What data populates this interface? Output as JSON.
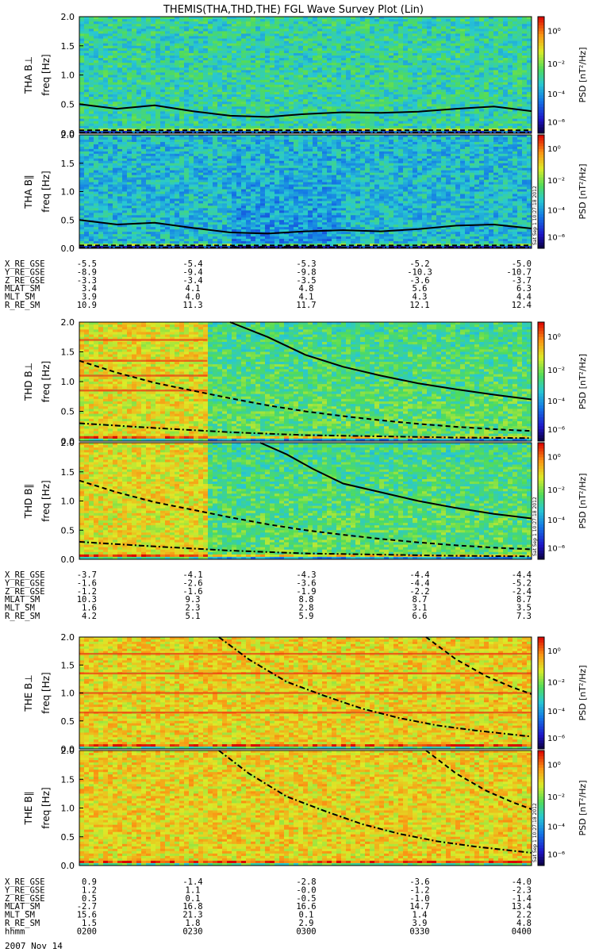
{
  "title": "THEMIS(THA,THD,THE) FGL Wave Survey Plot (Lin)",
  "freq_axis_label": "freq [Hz]",
  "freq_ticks": [
    "0.0",
    "0.5",
    "1.0",
    "1.5",
    "2.0"
  ],
  "psd_axis_label": "PSD [nT²/Hz]",
  "psd_ticks": [
    "10⁰",
    "10⁻²",
    "10⁻⁴",
    "10⁻⁶"
  ],
  "timestamp_note": "Sat Sep 1 10:27:18 2012",
  "date_label": "2007 Nov 14",
  "chart_data": [
    {
      "type": "heatmap",
      "probe": "THA",
      "panels": [
        {
          "component": "THA B⊥",
          "ylim": [
            0,
            2.0
          ],
          "spectrum": "moderate",
          "gap_lines": [],
          "curves": [
            {
              "style": "solid",
              "t": [
                0,
                10,
                20,
                30,
                40,
                50,
                60,
                70,
                80,
                90,
                100,
                110,
                120
              ],
              "f": [
                0.5,
                0.42,
                0.48,
                0.38,
                0.3,
                0.28,
                0.33,
                0.36,
                0.35,
                0.37,
                0.42,
                0.46,
                0.38
              ]
            },
            {
              "style": "dashed",
              "t": [
                0,
                120
              ],
              "f": [
                0.05,
                0.05
              ]
            },
            {
              "style": "dashdot",
              "t": [
                0,
                120
              ],
              "f": [
                0.01,
                0.01
              ]
            }
          ]
        },
        {
          "component": "THA B∥",
          "ylim": [
            0,
            2.0
          ],
          "spectrum": "quiet",
          "gap_lines": [],
          "curves": [
            {
              "style": "solid",
              "t": [
                0,
                10,
                20,
                30,
                40,
                50,
                60,
                70,
                80,
                90,
                100,
                110,
                120
              ],
              "f": [
                0.5,
                0.42,
                0.45,
                0.36,
                0.28,
                0.26,
                0.3,
                0.32,
                0.3,
                0.34,
                0.4,
                0.42,
                0.35
              ]
            },
            {
              "style": "dashed",
              "t": [
                0,
                120
              ],
              "f": [
                0.05,
                0.05
              ]
            },
            {
              "style": "dashdot",
              "t": [
                0,
                120
              ],
              "f": [
                0.01,
                0.01
              ]
            }
          ]
        }
      ],
      "ephemeris": {
        "labels": [
          "X_RE_GSE",
          "Y_RE_GSE",
          "Z_RE_GSE",
          "MLAT_SM",
          "MLT_SM",
          "R_RE_SM"
        ],
        "columns": [
          [
            "-5.5",
            "-8.9",
            "-3.3",
            "3.4",
            "3.9",
            "10.9"
          ],
          [
            "-5.4",
            "-9.4",
            "-3.4",
            "4.1",
            "4.0",
            "11.3"
          ],
          [
            "-5.3",
            "-9.8",
            "-3.5",
            "4.8",
            "4.1",
            "11.7"
          ],
          [
            "-5.2",
            "-10.3",
            "-3.6",
            "5.6",
            "4.3",
            "12.1"
          ],
          [
            "-5.0",
            "-10.7",
            "-3.7",
            "6.3",
            "4.4",
            "12.4"
          ]
        ]
      }
    },
    {
      "type": "heatmap",
      "probe": "THD",
      "panels": [
        {
          "component": "THD B⊥",
          "ylim": [
            0,
            2.0
          ],
          "spectrum": "hot_then_green",
          "hot_until_t": 34,
          "gap_lines": [
            1.7,
            1.35,
            1.1,
            0.85
          ],
          "curves": [
            {
              "style": "solid",
              "t": [
                40,
                50,
                60,
                70,
                80,
                90,
                100,
                110,
                120
              ],
              "f": [
                2.0,
                1.75,
                1.45,
                1.25,
                1.1,
                0.97,
                0.87,
                0.78,
                0.7
              ]
            },
            {
              "style": "dashed",
              "t": [
                0,
                10,
                20,
                30,
                40,
                50,
                60,
                70,
                80,
                90,
                100,
                110,
                120
              ],
              "f": [
                1.35,
                1.15,
                0.98,
                0.85,
                0.72,
                0.6,
                0.5,
                0.42,
                0.35,
                0.29,
                0.24,
                0.2,
                0.17
              ]
            },
            {
              "style": "dashdot",
              "t": [
                0,
                20,
                40,
                60,
                80,
                100,
                120
              ],
              "f": [
                0.3,
                0.22,
                0.15,
                0.1,
                0.08,
                0.06,
                0.05
              ]
            }
          ]
        },
        {
          "component": "THD B∥",
          "ylim": [
            0,
            2.0
          ],
          "spectrum": "hot_then_green",
          "hot_until_t": 34,
          "gap_lines": [],
          "curves": [
            {
              "style": "solid",
              "t": [
                48,
                55,
                62,
                70,
                80,
                90,
                100,
                110,
                120
              ],
              "f": [
                2.0,
                1.8,
                1.55,
                1.3,
                1.15,
                1.0,
                0.88,
                0.78,
                0.7
              ]
            },
            {
              "style": "dashed",
              "t": [
                0,
                10,
                20,
                30,
                40,
                50,
                60,
                70,
                80,
                90,
                100,
                110,
                120
              ],
              "f": [
                1.35,
                1.15,
                0.98,
                0.85,
                0.72,
                0.6,
                0.5,
                0.42,
                0.35,
                0.29,
                0.24,
                0.2,
                0.17
              ]
            },
            {
              "style": "dashdot",
              "t": [
                0,
                20,
                40,
                60,
                80,
                100,
                120
              ],
              "f": [
                0.3,
                0.22,
                0.15,
                0.1,
                0.08,
                0.06,
                0.05
              ]
            }
          ]
        }
      ],
      "ephemeris": {
        "labels": [
          "X_RE_GSE",
          "Y_RE_GSE",
          "Z_RE_GSE",
          "MLAT_SM",
          "MLT_SM",
          "R_RE_SM"
        ],
        "columns": [
          [
            "-3.7",
            "-1.6",
            "-1.2",
            "10.3",
            "1.6",
            "4.2"
          ],
          [
            "-4.1",
            "-2.6",
            "-1.6",
            "9.3",
            "2.3",
            "5.1"
          ],
          [
            "-4.3",
            "-3.6",
            "-1.9",
            "8.8",
            "2.8",
            "5.9"
          ],
          [
            "-4.4",
            "-4.4",
            "-2.2",
            "8.7",
            "3.1",
            "6.6"
          ],
          [
            "-4.4",
            "-5.2",
            "-2.4",
            "8.7",
            "3.5",
            "7.3"
          ]
        ]
      }
    },
    {
      "type": "heatmap",
      "probe": "THE",
      "panels": [
        {
          "component": "THE B⊥",
          "ylim": [
            0,
            2.0
          ],
          "spectrum": "hot",
          "gap_lines": [
            1.7,
            1.35,
            1.0,
            0.65
          ],
          "curves": [
            {
              "style": "dashdot",
              "t": [
                37,
                45,
                55,
                65,
                75,
                85,
                95,
                105,
                120
              ],
              "f": [
                2.0,
                1.6,
                1.2,
                0.95,
                0.72,
                0.55,
                0.42,
                0.33,
                0.22
              ]
            },
            {
              "style": "dashed",
              "t": [
                92,
                100,
                108,
                115,
                120
              ],
              "f": [
                2.0,
                1.6,
                1.3,
                1.1,
                0.98
              ]
            }
          ]
        },
        {
          "component": "THE B∥",
          "ylim": [
            0,
            2.0
          ],
          "spectrum": "hot",
          "gap_lines": [],
          "curves": [
            {
              "style": "dashdot",
              "t": [
                37,
                45,
                55,
                65,
                75,
                85,
                95,
                105,
                120
              ],
              "f": [
                2.0,
                1.6,
                1.2,
                0.95,
                0.72,
                0.55,
                0.42,
                0.33,
                0.22
              ]
            },
            {
              "style": "dashed",
              "t": [
                92,
                100,
                108,
                115,
                120
              ],
              "f": [
                2.0,
                1.6,
                1.3,
                1.1,
                0.98
              ]
            }
          ]
        }
      ],
      "ephemeris": {
        "labels": [
          "X_RE_GSE",
          "Y_RE_GSE",
          "Z_RE_GSE",
          "MLAT_SM",
          "MLT_SM",
          "R_RE_SM",
          "hhmm"
        ],
        "columns": [
          [
            "0.9",
            "1.2",
            "0.5",
            "-2.7",
            "15.6",
            "1.5",
            "0200"
          ],
          [
            "-1.4",
            "1.1",
            "0.1",
            "16.8",
            "21.3",
            "1.8",
            "0230"
          ],
          [
            "-2.8",
            "-0.0",
            "-0.5",
            "16.6",
            "0.1",
            "2.9",
            "0300"
          ],
          [
            "-3.6",
            "-1.2",
            "-1.0",
            "14.7",
            "1.4",
            "3.9",
            "0330"
          ],
          [
            "-4.0",
            "-2.3",
            "-1.4",
            "13.4",
            "2.2",
            "4.8",
            "0400"
          ]
        ]
      }
    }
  ]
}
